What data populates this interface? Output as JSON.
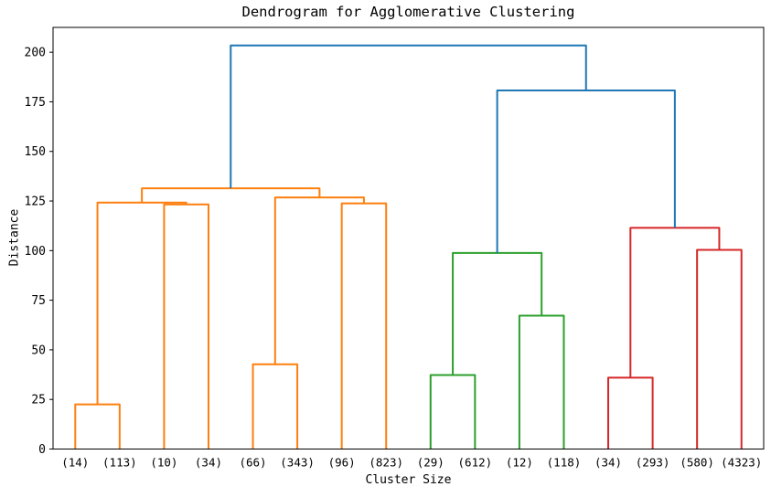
{
  "figure": {
    "title": "Dendrogram for Agglomerative Clustering"
  },
  "chart_data": {
    "type": "dendrogram",
    "title": "Dendrogram for Agglomerative Clustering",
    "xlabel": "Cluster Size",
    "ylabel": "Distance",
    "grid": false,
    "legend": "none",
    "leaf_labels": [
      "(14)",
      "(113)",
      "(10)",
      "(34)",
      "(66)",
      "(343)",
      "(96)",
      "(823)",
      "(29)",
      "(612)",
      "(12)",
      "(118)",
      "(34)",
      "(293)",
      "(580)",
      "(4323)"
    ],
    "leaf_spacing": 10,
    "first_leaf_x": 5,
    "xlim": [
      0,
      160
    ],
    "ylim": [
      0,
      212.5
    ],
    "yticks": [
      0,
      25,
      50,
      75,
      100,
      125,
      150,
      175,
      200
    ],
    "palette": {
      "blue": "#1f77b4",
      "orange": "#ff7f0e",
      "green": "#2ca02c",
      "red": "#d62728"
    },
    "links": [
      {
        "x1": 5,
        "x2": 15,
        "y1": 0,
        "y2": 0,
        "h": 22.5,
        "color": "orange",
        "note": "(14)+(113)"
      },
      {
        "x1": 25,
        "x2": 35,
        "y1": 0,
        "y2": 0,
        "h": 123.3,
        "color": "orange",
        "note": "(10)+(34)"
      },
      {
        "x1": 10,
        "x2": 30,
        "y1": 22.5,
        "y2": 123.3,
        "h": 124.2,
        "color": "orange",
        "note": "[(14)(113)]+[(10)(34)]"
      },
      {
        "x1": 45,
        "x2": 55,
        "y1": 0,
        "y2": 0,
        "h": 42.7,
        "color": "orange",
        "note": "(66)+(343)"
      },
      {
        "x1": 65,
        "x2": 75,
        "y1": 0,
        "y2": 0,
        "h": 123.8,
        "color": "orange",
        "note": "(96)+(823)"
      },
      {
        "x1": 50,
        "x2": 70,
        "y1": 42.7,
        "y2": 123.8,
        "h": 126.8,
        "color": "orange",
        "note": "[(66)(343)]+[(96)(823)]"
      },
      {
        "x1": 20,
        "x2": 60,
        "y1": 124.2,
        "y2": 126.8,
        "h": 131.4,
        "color": "orange",
        "note": "orange-root"
      },
      {
        "x1": 85,
        "x2": 95,
        "y1": 0,
        "y2": 0,
        "h": 37.3,
        "color": "green",
        "note": "(29)+(612)"
      },
      {
        "x1": 105,
        "x2": 115,
        "y1": 0,
        "y2": 0,
        "h": 67.2,
        "color": "green",
        "note": "(12)+(118)"
      },
      {
        "x1": 90,
        "x2": 110,
        "y1": 37.3,
        "y2": 67.2,
        "h": 98.8,
        "color": "green",
        "note": "green-root"
      },
      {
        "x1": 125,
        "x2": 135,
        "y1": 0,
        "y2": 0,
        "h": 36.0,
        "color": "red",
        "note": "(34)+(293)"
      },
      {
        "x1": 145,
        "x2": 155,
        "y1": 0,
        "y2": 0,
        "h": 100.4,
        "color": "red",
        "note": "(580)+(4323)"
      },
      {
        "x1": 130,
        "x2": 150,
        "y1": 36.0,
        "y2": 100.4,
        "h": 111.5,
        "color": "red",
        "note": "red-root"
      },
      {
        "x1": 100,
        "x2": 140,
        "y1": 98.8,
        "y2": 111.5,
        "h": 180.7,
        "color": "blue",
        "note": "green+red"
      },
      {
        "x1": 40,
        "x2": 120,
        "y1": 131.4,
        "y2": 180.7,
        "h": 203.4,
        "color": "blue",
        "note": "root"
      }
    ]
  }
}
